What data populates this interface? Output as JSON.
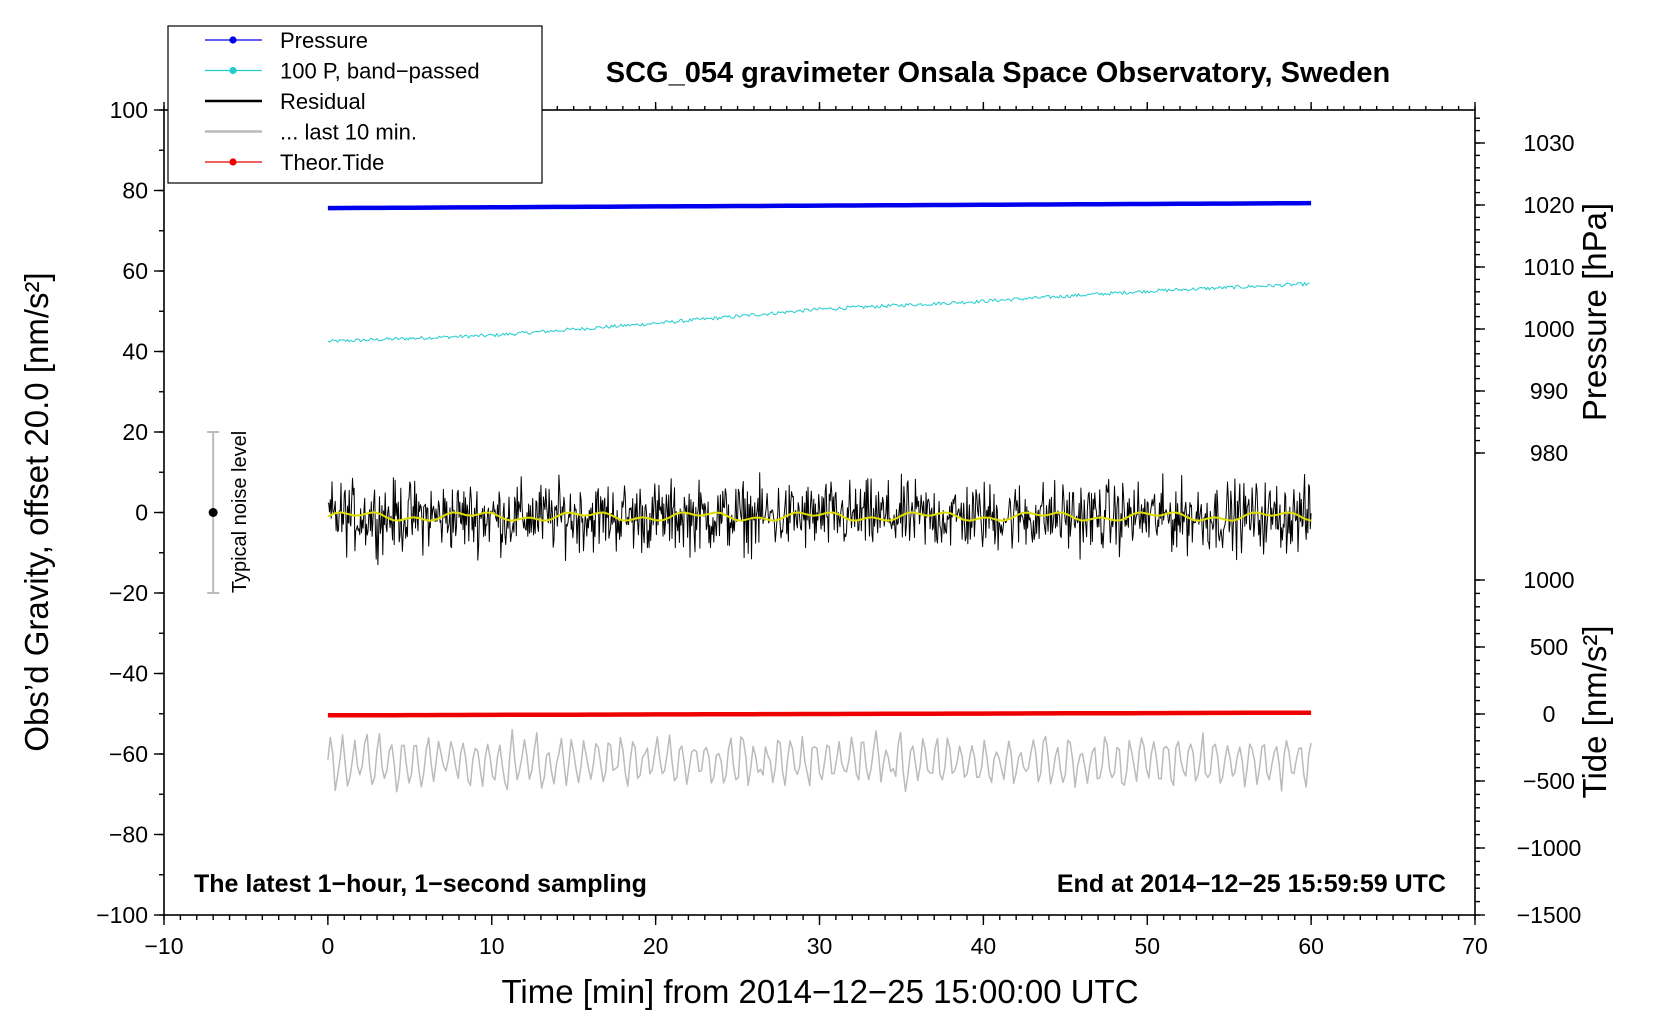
{
  "chart_data": {
    "type": "line",
    "title": "SCG_054 gravimeter Onsala Space Observatory, Sweden",
    "xlabel": "Time [min] from 2014−12−25 15:00:00 UTC",
    "xlim": [
      -10,
      70
    ],
    "xticks": [
      "−10",
      "0",
      "10",
      "20",
      "30",
      "40",
      "50",
      "60",
      "70"
    ],
    "left_axis": {
      "label": "Obs’d Gravity, offset 20.0 [nm/s²]",
      "ylim": [
        -100,
        100
      ],
      "ticks": [
        "100",
        "80",
        "60",
        "40",
        "20",
        "0",
        "−20",
        "−40",
        "−60",
        "−80",
        "−100"
      ]
    },
    "pressure_axis": {
      "label": "Pressure [hPa]",
      "ticks": [
        "1030",
        "1020",
        "1010",
        "1000",
        "990",
        "980"
      ]
    },
    "tide_axis": {
      "label": "Tide [nm/s²]",
      "ticks": [
        "1000",
        "500",
        "0",
        "−500",
        "−1000",
        "−1500"
      ]
    },
    "legend": {
      "placement": "top-left",
      "items": [
        {
          "label": "Pressure",
          "color": "#0000ee",
          "marker": "dot"
        },
        {
          "label": "100 P, band−passed",
          "color": "#22cccc",
          "marker": "dot"
        },
        {
          "label": "Residual",
          "color": "#000000",
          "marker": "line"
        },
        {
          "label": "... last 10 min.",
          "color": "#bbbbbb",
          "marker": "line"
        },
        {
          "label": "Theor.Tide",
          "color": "#ee0000",
          "marker": "dot"
        }
      ]
    },
    "series": [
      {
        "name": "Pressure",
        "color": "#0000ee",
        "axis": "pressure",
        "x": [
          0,
          60
        ],
        "y": [
          1019.5,
          1020.3
        ]
      },
      {
        "name": "100 P, band−passed",
        "color": "#22cccc",
        "axis": "left",
        "x": [
          0,
          10,
          20,
          30,
          40,
          50,
          60
        ],
        "y": [
          42.5,
          44,
          47,
          50.5,
          52.5,
          55,
          56.8
        ]
      },
      {
        "name": "Residual",
        "color": "#000000",
        "axis": "left",
        "x": [
          0,
          60
        ],
        "y": [
          -1,
          -1
        ],
        "noise_amplitude": 8
      },
      {
        "name": "... last 10 min.",
        "color": "#bbbbbb",
        "axis": "left",
        "x": [
          0,
          60
        ],
        "y": [
          -62,
          -62
        ],
        "noise_amplitude": 8
      },
      {
        "name": "Theor.Tide",
        "color": "#ee0000",
        "axis": "tide",
        "x": [
          0,
          60
        ],
        "y": [
          -10,
          10
        ]
      }
    ],
    "smoothed_residual_color": "#dddd00",
    "noise_bar": {
      "label": "Typical noise level",
      "x": -7,
      "y": [
        -20,
        20
      ],
      "color": "#bbbbbb"
    },
    "annotations": {
      "left": "The latest 1−hour, 1−second sampling",
      "right": "End at 2014−12−25 15:59:59 UTC"
    }
  }
}
